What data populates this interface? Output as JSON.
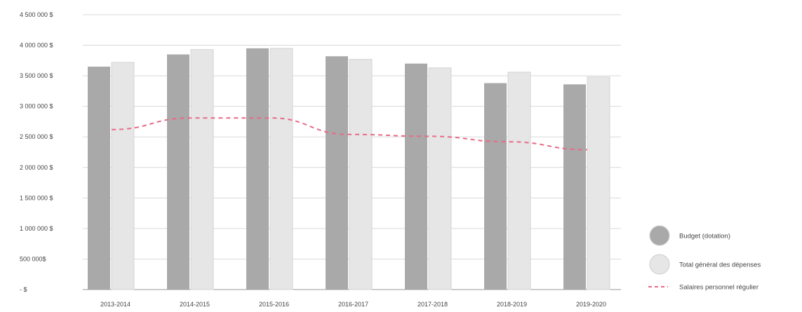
{
  "chart_data": {
    "type": "bar",
    "title": "",
    "xlabel": "",
    "ylabel": "",
    "categories": [
      "2013-2014",
      "2014-2015",
      "2015-2016",
      "2016-2017",
      "2017-2018",
      "2018-2019",
      "2019-2020"
    ],
    "series": [
      {
        "name": "Budget (dotation)",
        "type": "bar",
        "color": "#a9a9a9",
        "values": [
          3650000,
          3850000,
          3950000,
          3820000,
          3700000,
          3380000,
          3360000
        ]
      },
      {
        "name": "Total général des dépenses",
        "type": "bar",
        "color": "#e6e6e6",
        "values": [
          3720000,
          3930000,
          3950000,
          3770000,
          3630000,
          3560000,
          3480000
        ]
      },
      {
        "name": "Salaires personnel régulier",
        "type": "line",
        "style": "dashed",
        "color": "#e86b86",
        "values": [
          2620000,
          2810000,
          2810000,
          2540000,
          2510000,
          2420000,
          2290000
        ]
      }
    ],
    "ylim": [
      0,
      4500000
    ],
    "y_ticks": [
      {
        "value": 0,
        "label": "- $"
      },
      {
        "value": 500000,
        "label": "500 000$"
      },
      {
        "value": 1000000,
        "label": "1 000 000 $"
      },
      {
        "value": 1500000,
        "label": "1 500 000 $"
      },
      {
        "value": 2000000,
        "label": "2 000 000 $"
      },
      {
        "value": 2500000,
        "label": "2 500 000 $"
      },
      {
        "value": 3000000,
        "label": "3 000 000 $"
      },
      {
        "value": 3500000,
        "label": "3 500 000 $"
      },
      {
        "value": 4000000,
        "label": "4 000 000 $"
      },
      {
        "value": 4500000,
        "label": "4 500 000 $"
      }
    ],
    "grid": true,
    "legend_position": "bottom-right"
  }
}
